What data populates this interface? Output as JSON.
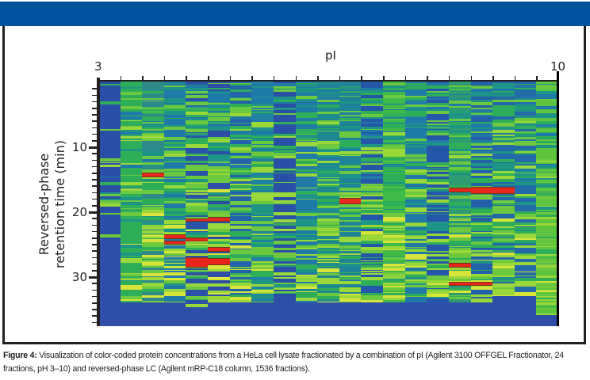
{
  "figure": {
    "label": "Figure 4:",
    "caption": " Visualization of color-coded protein concentrations from a HeLa cell lysate fractionated by a combination of pI (Agilent 3100 OFFGEL Fractionator, 24 fractions, pH 3–10) and reversed-phase LC (Agilent mRP-C18 column, 1536 fractions).",
    "header_color": "#00529c"
  },
  "axes": {
    "x_title": "pI",
    "x_min_label": "3",
    "x_max_label": "10",
    "y_title_line1": "Reversed-phase",
    "y_title_line2": "retention time (min)",
    "y_tick_labels": [
      "10",
      "20",
      "30"
    ]
  },
  "chart_data": {
    "type": "heatmap",
    "title": "",
    "xlabel": "pI",
    "ylabel": "Reversed-phase retention time (min)",
    "x_range": [
      3,
      10
    ],
    "y_range": [
      0,
      37.5
    ],
    "y_ticks": [
      10,
      20,
      30
    ],
    "y_minor_tick_step": 1,
    "n_columns": 21,
    "colorscale": [
      "#2a4fa6",
      "#1f7aa8",
      "#1fa36a",
      "#7ccf3a",
      "#e6e632",
      "#8a4a1a",
      "#e8261e"
    ],
    "columns": [
      {
        "base": "#2a4fa6",
        "signal_end": 24,
        "density": 0.25
      },
      {
        "base": "#2fae5a",
        "signal_end": 34,
        "density": 0.6
      },
      {
        "base": "#2e8a8a",
        "signal_end": 34,
        "density": 0.8
      },
      {
        "base": "#1f7aa8",
        "signal_end": 34,
        "density": 0.7
      },
      {
        "base": "#2a52a8",
        "signal_end": 35,
        "density": 0.75
      },
      {
        "base": "#2d4da6",
        "signal_end": 34,
        "density": 0.8
      },
      {
        "base": "#2363ac",
        "signal_end": 34,
        "density": 0.65
      },
      {
        "base": "#1f82a0",
        "signal_end": 34,
        "density": 0.6
      },
      {
        "base": "#2a4fa6",
        "signal_end": 33,
        "density": 0.55
      },
      {
        "base": "#1f7aa8",
        "signal_end": 34,
        "density": 0.6
      },
      {
        "base": "#1e8a90",
        "signal_end": 34,
        "density": 0.65
      },
      {
        "base": "#1f8498",
        "signal_end": 34,
        "density": 0.6
      },
      {
        "base": "#2457aa",
        "signal_end": 34,
        "density": 0.6
      },
      {
        "base": "#3fba48",
        "signal_end": 34,
        "density": 0.7
      },
      {
        "base": "#1f7aa8",
        "signal_end": 34,
        "density": 0.6
      },
      {
        "base": "#2457aa",
        "signal_end": 34,
        "density": 0.6
      },
      {
        "base": "#2e9a72",
        "signal_end": 34,
        "density": 0.7
      },
      {
        "base": "#2360aa",
        "signal_end": 34,
        "density": 0.7
      },
      {
        "base": "#2369aa",
        "signal_end": 33,
        "density": 0.7
      },
      {
        "base": "#236aa8",
        "signal_end": 33,
        "density": 0.65
      },
      {
        "base": "#5cc43e",
        "signal_end": 36,
        "density": 0.6
      }
    ],
    "red_spots": [
      {
        "col": 2,
        "t": 14.2,
        "h": 0.4
      },
      {
        "col": 3,
        "t": 23.6,
        "h": 0.5
      },
      {
        "col": 3,
        "t": 24.6,
        "h": 0.4
      },
      {
        "col": 4,
        "t": 24.1,
        "h": 0.4
      },
      {
        "col": 4,
        "t": 27.2,
        "h": 1.3
      },
      {
        "col": 5,
        "t": 27.3,
        "h": 0.9
      },
      {
        "col": 5,
        "t": 25.6,
        "h": 0.5
      },
      {
        "col": 5,
        "t": 21.0,
        "h": 0.5
      },
      {
        "col": 4,
        "t": 21.2,
        "h": 0.3
      },
      {
        "col": 11,
        "t": 18.0,
        "h": 0.8
      },
      {
        "col": 16,
        "t": 28.0,
        "h": 0.5
      },
      {
        "col": 16,
        "t": 16.5,
        "h": 0.5
      },
      {
        "col": 17,
        "t": 16.3,
        "h": 0.9
      },
      {
        "col": 18,
        "t": 16.3,
        "h": 0.9
      },
      {
        "col": 16,
        "t": 31.0,
        "h": 0.4
      },
      {
        "col": 17,
        "t": 31.0,
        "h": 0.4
      }
    ]
  }
}
